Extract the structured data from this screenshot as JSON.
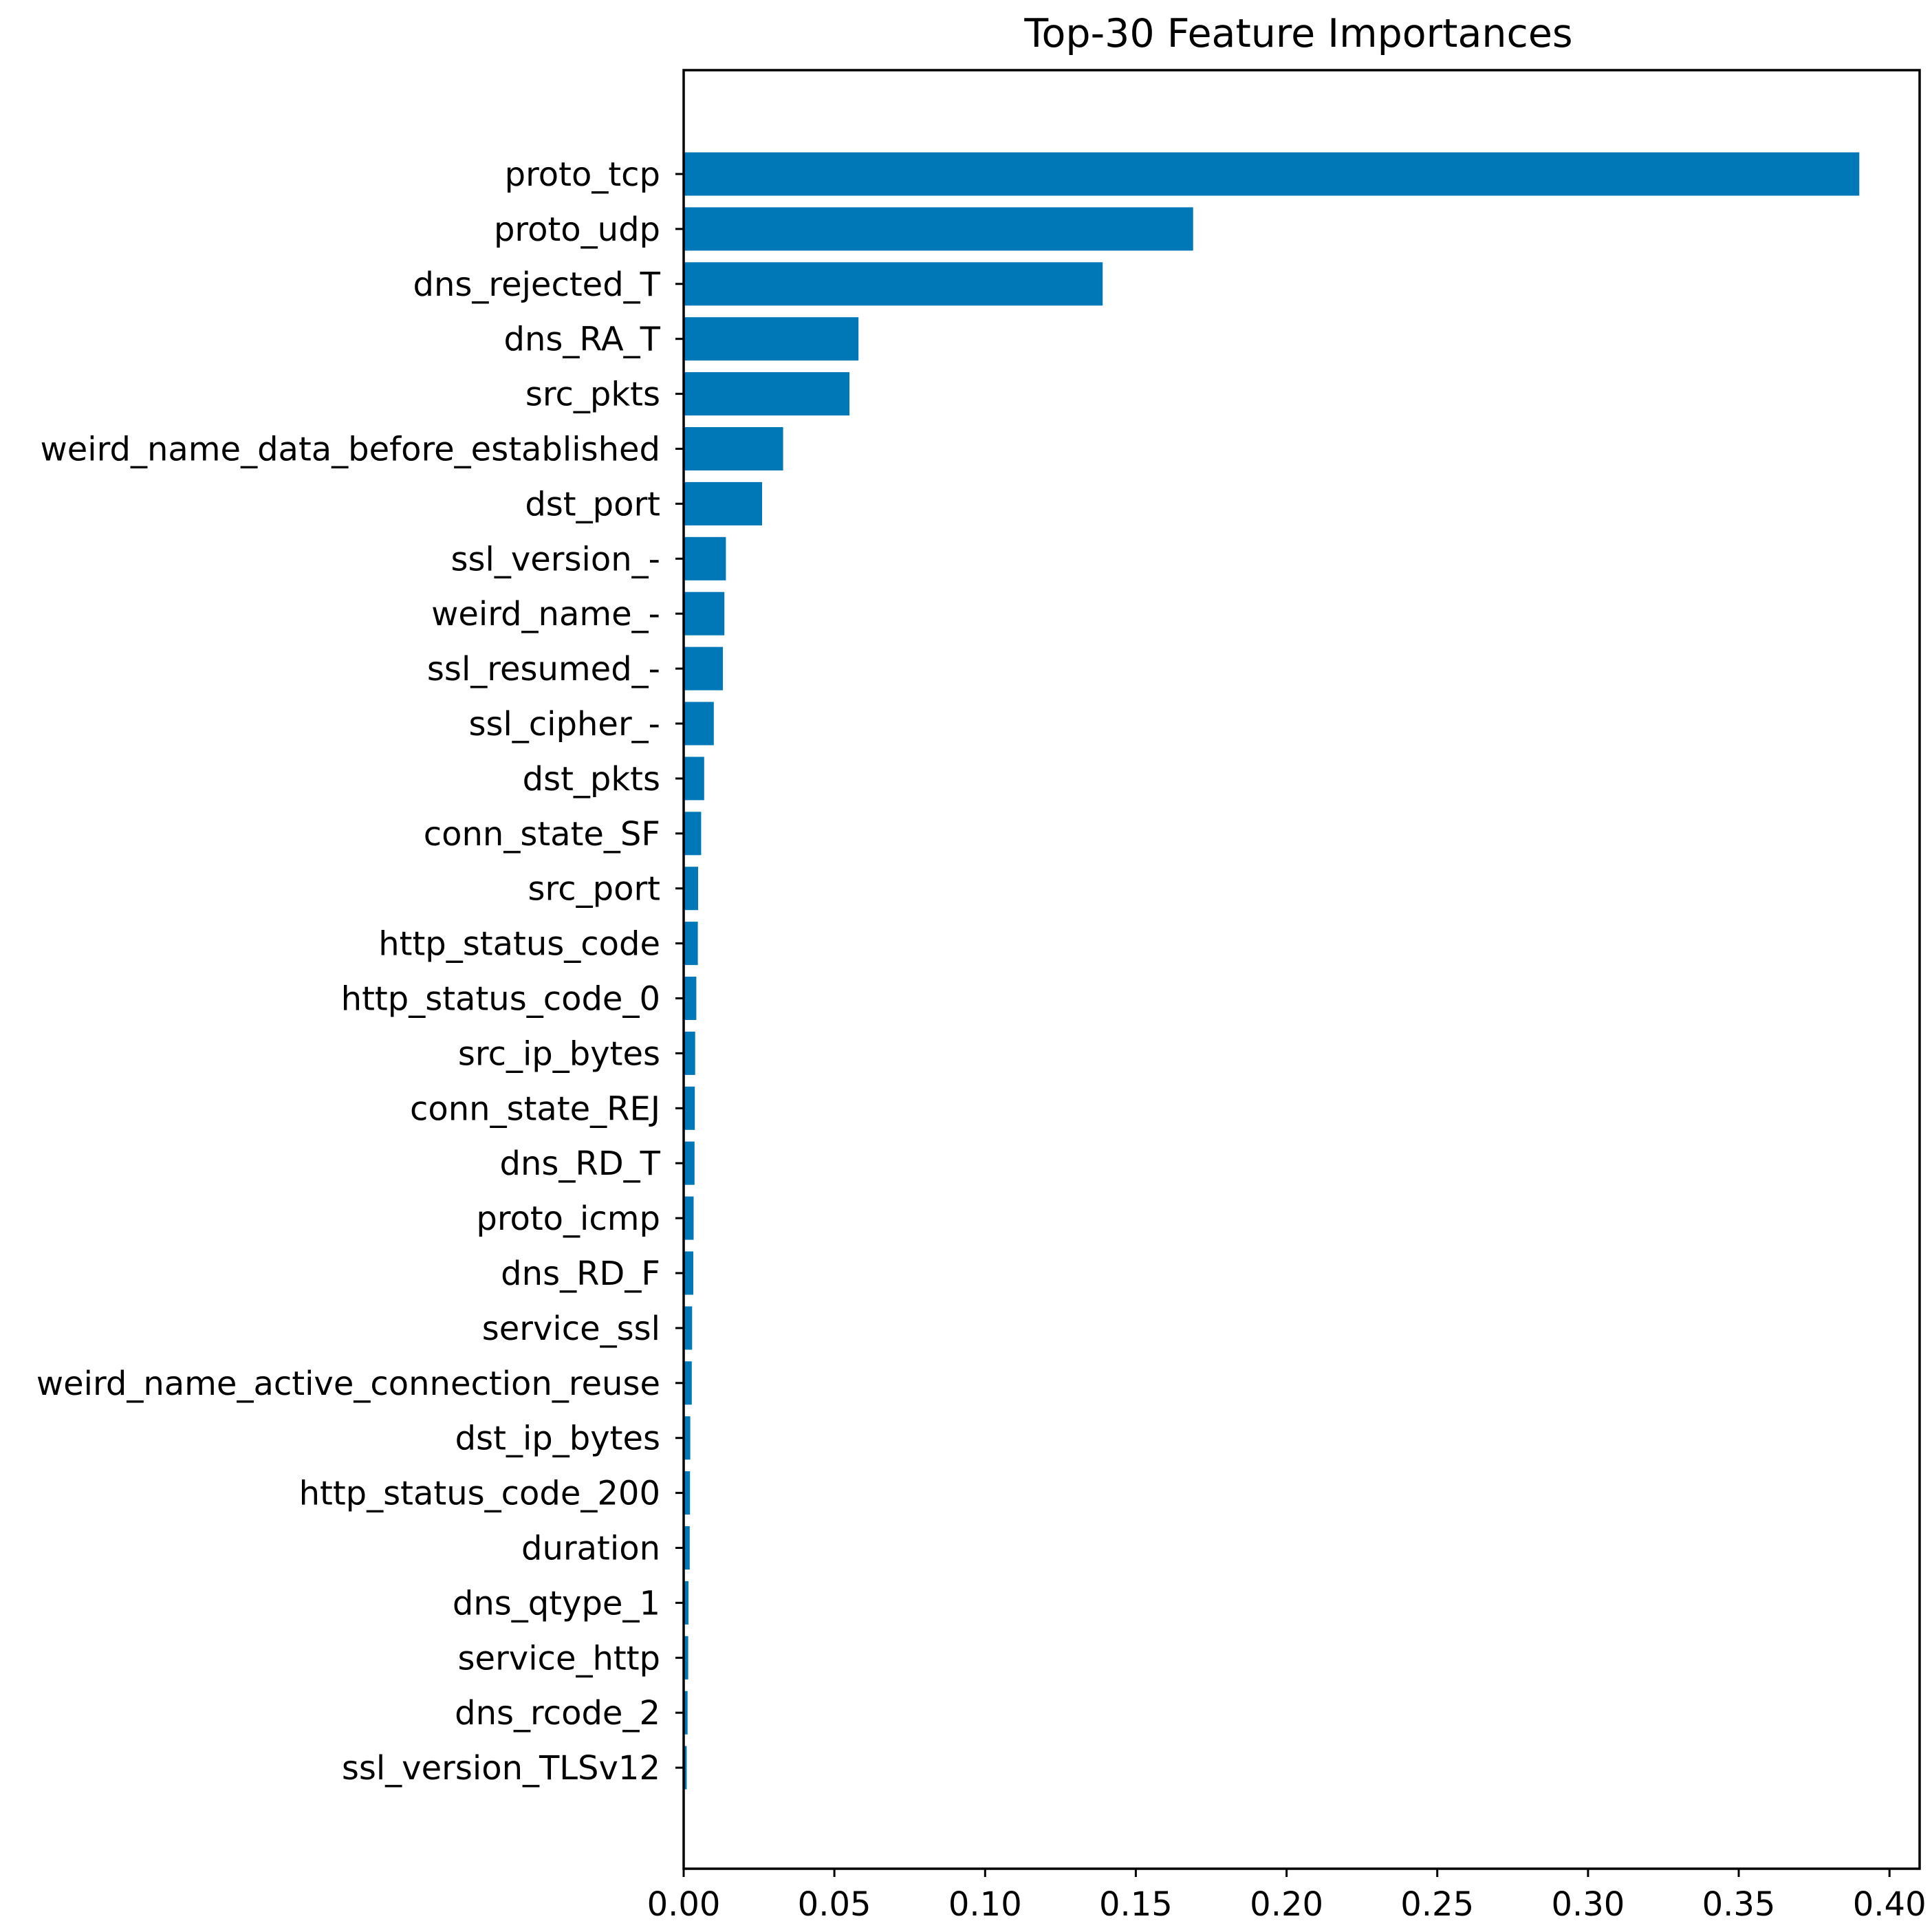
{
  "chart_data": {
    "type": "bar",
    "orientation": "horizontal",
    "title": "Top-30 Feature Importances",
    "xlabel": "",
    "ylabel": "",
    "xlim": [
      0,
      0.41
    ],
    "grid": false,
    "legend": "none",
    "bar_color": "#0077B6",
    "x_ticks": [
      "0.00",
      "0.05",
      "0.10",
      "0.15",
      "0.20",
      "0.25",
      "0.30",
      "0.35",
      "0.40"
    ],
    "x_tick_values": [
      0,
      0.05,
      0.1,
      0.15,
      0.2,
      0.25,
      0.3,
      0.35,
      0.4
    ],
    "categories": [
      "proto_tcp",
      "proto_udp",
      "dns_rejected_T",
      "dns_RA_T",
      "src_pkts",
      "weird_name_data_before_established",
      "dst_port",
      "ssl_version_-",
      "weird_name_-",
      "ssl_resumed_-",
      "ssl_cipher_-",
      "dst_pkts",
      "conn_state_SF",
      "src_port",
      "http_status_code",
      "http_status_code_0",
      "src_ip_bytes",
      "conn_state_REJ",
      "dns_RD_T",
      "proto_icmp",
      "dns_RD_F",
      "service_ssl",
      "weird_name_active_connection_reuse",
      "dst_ip_bytes",
      "http_status_code_200",
      "duration",
      "dns_qtype_1",
      "service_http",
      "dns_rcode_2",
      "ssl_version_TLSv12"
    ],
    "values": [
      0.39,
      0.169,
      0.139,
      0.058,
      0.055,
      0.033,
      0.026,
      0.014,
      0.0135,
      0.013,
      0.01,
      0.0068,
      0.0058,
      0.0048,
      0.0047,
      0.0042,
      0.0038,
      0.0037,
      0.0036,
      0.0033,
      0.0032,
      0.0028,
      0.0027,
      0.0022,
      0.0021,
      0.002,
      0.0016,
      0.0015,
      0.0013,
      0.001
    ]
  }
}
